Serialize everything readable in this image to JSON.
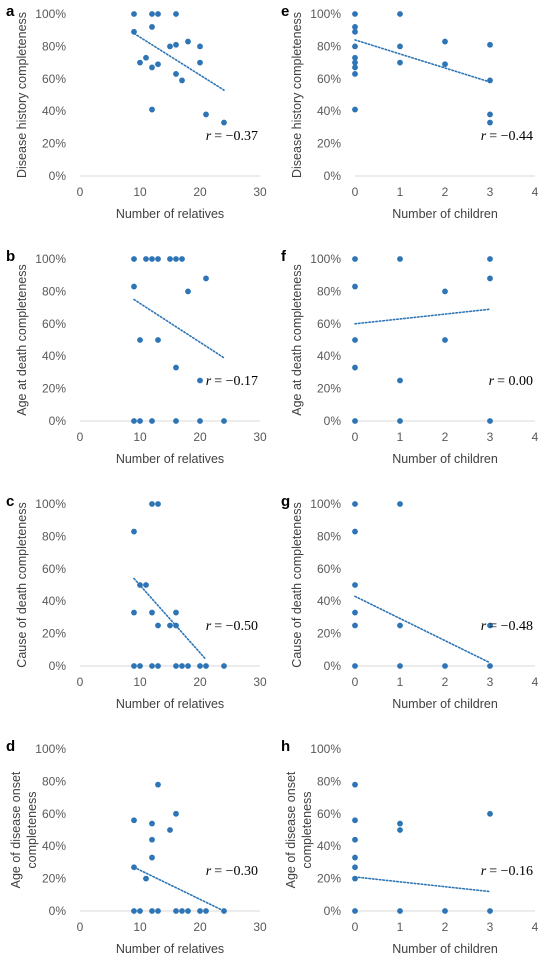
{
  "series_color": "#2E75B6",
  "chart_data": [
    {
      "panel": "a",
      "type": "scatter",
      "xlabel": "Number of relatives",
      "ylabel": [
        "Disease history completeness"
      ],
      "xlim": [
        0,
        30
      ],
      "xticks": [
        0,
        10,
        20,
        30
      ],
      "ylim": [
        0,
        100
      ],
      "yticks": [
        0,
        20,
        40,
        60,
        80,
        100
      ],
      "y_format": "percent",
      "points": [
        [
          9,
          100
        ],
        [
          9,
          89
        ],
        [
          10,
          70
        ],
        [
          11,
          73
        ],
        [
          12,
          100
        ],
        [
          12,
          92
        ],
        [
          13,
          100
        ],
        [
          12,
          67
        ],
        [
          13,
          69
        ],
        [
          12,
          41
        ],
        [
          15,
          80
        ],
        [
          16,
          100
        ],
        [
          16,
          81
        ],
        [
          16,
          63
        ],
        [
          17,
          59
        ],
        [
          18,
          83
        ],
        [
          20,
          80
        ],
        [
          20,
          70
        ],
        [
          21,
          38
        ],
        [
          24,
          33
        ]
      ],
      "trendline": [
        [
          9,
          88
        ],
        [
          24,
          53
        ]
      ],
      "r_label": "= −0.37"
    },
    {
      "panel": "e",
      "type": "scatter",
      "xlabel": "Number of children",
      "ylabel": [
        "Disease history completeness"
      ],
      "xlim": [
        0,
        4
      ],
      "xticks": [
        0,
        1,
        2,
        3,
        4
      ],
      "ylim": [
        0,
        100
      ],
      "yticks": [
        0,
        20,
        40,
        60,
        80,
        100
      ],
      "y_format": "percent",
      "points": [
        [
          0,
          100
        ],
        [
          0,
          92
        ],
        [
          0,
          89
        ],
        [
          0,
          80
        ],
        [
          0,
          73
        ],
        [
          0,
          70
        ],
        [
          0,
          67
        ],
        [
          0,
          63
        ],
        [
          0,
          41
        ],
        [
          1,
          100
        ],
        [
          1,
          80
        ],
        [
          1,
          70
        ],
        [
          2,
          83
        ],
        [
          2,
          69
        ],
        [
          3,
          81
        ],
        [
          3,
          59
        ],
        [
          3,
          38
        ],
        [
          3,
          33
        ]
      ],
      "trendline": [
        [
          0,
          84
        ],
        [
          3,
          58
        ]
      ],
      "r_label": "= −0.44"
    },
    {
      "panel": "b",
      "type": "scatter",
      "xlabel": "Number of relatives",
      "ylabel": [
        "Age at death completeness"
      ],
      "xlim": [
        0,
        30
      ],
      "xticks": [
        0,
        10,
        20,
        30
      ],
      "ylim": [
        0,
        100
      ],
      "yticks": [
        0,
        20,
        40,
        60,
        80,
        100
      ],
      "y_format": "percent",
      "points": [
        [
          9,
          100
        ],
        [
          9,
          83
        ],
        [
          9,
          0
        ],
        [
          10,
          50
        ],
        [
          10,
          0
        ],
        [
          11,
          100
        ],
        [
          12,
          100
        ],
        [
          12,
          0
        ],
        [
          13,
          100
        ],
        [
          13,
          50
        ],
        [
          15,
          100
        ],
        [
          16,
          100
        ],
        [
          16,
          33
        ],
        [
          16,
          0
        ],
        [
          17,
          100
        ],
        [
          18,
          80
        ],
        [
          20,
          25
        ],
        [
          20,
          0
        ],
        [
          21,
          88
        ],
        [
          24,
          0
        ]
      ],
      "trendline": [
        [
          9,
          75
        ],
        [
          24,
          39
        ]
      ],
      "r_label": "= −0.17"
    },
    {
      "panel": "f",
      "type": "scatter",
      "xlabel": "Number of children",
      "ylabel": [
        "Age at death completeness"
      ],
      "xlim": [
        0,
        4
      ],
      "xticks": [
        0,
        1,
        2,
        3,
        4
      ],
      "ylim": [
        0,
        100
      ],
      "yticks": [
        0,
        20,
        40,
        60,
        80,
        100
      ],
      "y_format": "percent",
      "points": [
        [
          0,
          100
        ],
        [
          0,
          83
        ],
        [
          0,
          50
        ],
        [
          0,
          33
        ],
        [
          0,
          0
        ],
        [
          1,
          100
        ],
        [
          1,
          25
        ],
        [
          1,
          0
        ],
        [
          2,
          80
        ],
        [
          2,
          50
        ],
        [
          3,
          100
        ],
        [
          3,
          88
        ],
        [
          3,
          0
        ]
      ],
      "trendline": [
        [
          0,
          60
        ],
        [
          3,
          69
        ]
      ],
      "r_label": "= 0.00"
    },
    {
      "panel": "c",
      "type": "scatter",
      "xlabel": "Number of relatives",
      "ylabel": [
        "Cause of death completeness"
      ],
      "xlim": [
        0,
        30
      ],
      "xticks": [
        0,
        10,
        20,
        30
      ],
      "ylim": [
        0,
        100
      ],
      "yticks": [
        0,
        20,
        40,
        60,
        80,
        100
      ],
      "y_format": "percent",
      "points": [
        [
          9,
          83
        ],
        [
          9,
          33
        ],
        [
          9,
          0
        ],
        [
          10,
          50
        ],
        [
          10,
          0
        ],
        [
          11,
          50
        ],
        [
          12,
          100
        ],
        [
          12,
          33
        ],
        [
          12,
          0
        ],
        [
          13,
          100
        ],
        [
          13,
          25
        ],
        [
          13,
          0
        ],
        [
          15,
          25
        ],
        [
          16,
          33
        ],
        [
          16,
          25
        ],
        [
          16,
          0
        ],
        [
          17,
          0
        ],
        [
          18,
          0
        ],
        [
          20,
          0
        ],
        [
          21,
          0
        ],
        [
          24,
          0
        ]
      ],
      "trendline": [
        [
          9,
          54
        ],
        [
          21,
          4
        ]
      ],
      "r_label": "= −0.50"
    },
    {
      "panel": "g",
      "type": "scatter",
      "xlabel": "Number of children",
      "ylabel": [
        "Cause of death completeness"
      ],
      "xlim": [
        0,
        4
      ],
      "xticks": [
        0,
        1,
        2,
        3,
        4
      ],
      "ylim": [
        0,
        100
      ],
      "yticks": [
        0,
        20,
        40,
        60,
        80,
        100
      ],
      "y_format": "percent",
      "points": [
        [
          0,
          100
        ],
        [
          0,
          83
        ],
        [
          0,
          50
        ],
        [
          0,
          33
        ],
        [
          0,
          25
        ],
        [
          0,
          0
        ],
        [
          1,
          100
        ],
        [
          1,
          25
        ],
        [
          1,
          0
        ],
        [
          2,
          0
        ],
        [
          3,
          25
        ],
        [
          3,
          0
        ]
      ],
      "trendline": [
        [
          0,
          43
        ],
        [
          3,
          2
        ]
      ],
      "r_label": "= −0.48"
    },
    {
      "panel": "d",
      "type": "scatter",
      "xlabel": "Number of relatives",
      "ylabel": [
        "Age of disease onset",
        "completeness"
      ],
      "xlim": [
        0,
        30
      ],
      "xticks": [
        0,
        10,
        20,
        30
      ],
      "ylim": [
        0,
        100
      ],
      "yticks": [
        0,
        20,
        40,
        60,
        80,
        100
      ],
      "y_format": "percent",
      "points": [
        [
          9,
          56
        ],
        [
          9,
          27
        ],
        [
          9,
          0
        ],
        [
          10,
          0
        ],
        [
          11,
          20
        ],
        [
          12,
          54
        ],
        [
          12,
          44
        ],
        [
          12,
          33
        ],
        [
          12,
          0
        ],
        [
          13,
          78
        ],
        [
          13,
          0
        ],
        [
          15,
          50
        ],
        [
          16,
          60
        ],
        [
          16,
          0
        ],
        [
          17,
          0
        ],
        [
          18,
          0
        ],
        [
          20,
          0
        ],
        [
          21,
          0
        ],
        [
          24,
          0
        ]
      ],
      "trendline": [
        [
          9,
          27
        ],
        [
          24,
          0
        ]
      ],
      "r_label": "= −0.30"
    },
    {
      "panel": "h",
      "type": "scatter",
      "xlabel": "Number of children",
      "ylabel": [
        "Age of disease onset",
        "completeness"
      ],
      "xlim": [
        0,
        4
      ],
      "xticks": [
        0,
        1,
        2,
        3,
        4
      ],
      "ylim": [
        0,
        100
      ],
      "yticks": [
        0,
        20,
        40,
        60,
        80,
        100
      ],
      "y_format": "percent",
      "points": [
        [
          0,
          78
        ],
        [
          0,
          56
        ],
        [
          0,
          44
        ],
        [
          0,
          33
        ],
        [
          0,
          27
        ],
        [
          0,
          20
        ],
        [
          0,
          0
        ],
        [
          1,
          54
        ],
        [
          1,
          50
        ],
        [
          1,
          0
        ],
        [
          2,
          0
        ],
        [
          3,
          60
        ],
        [
          3,
          0
        ]
      ],
      "trendline": [
        [
          0,
          21
        ],
        [
          3,
          12
        ]
      ],
      "r_label": "= −0.16"
    }
  ]
}
